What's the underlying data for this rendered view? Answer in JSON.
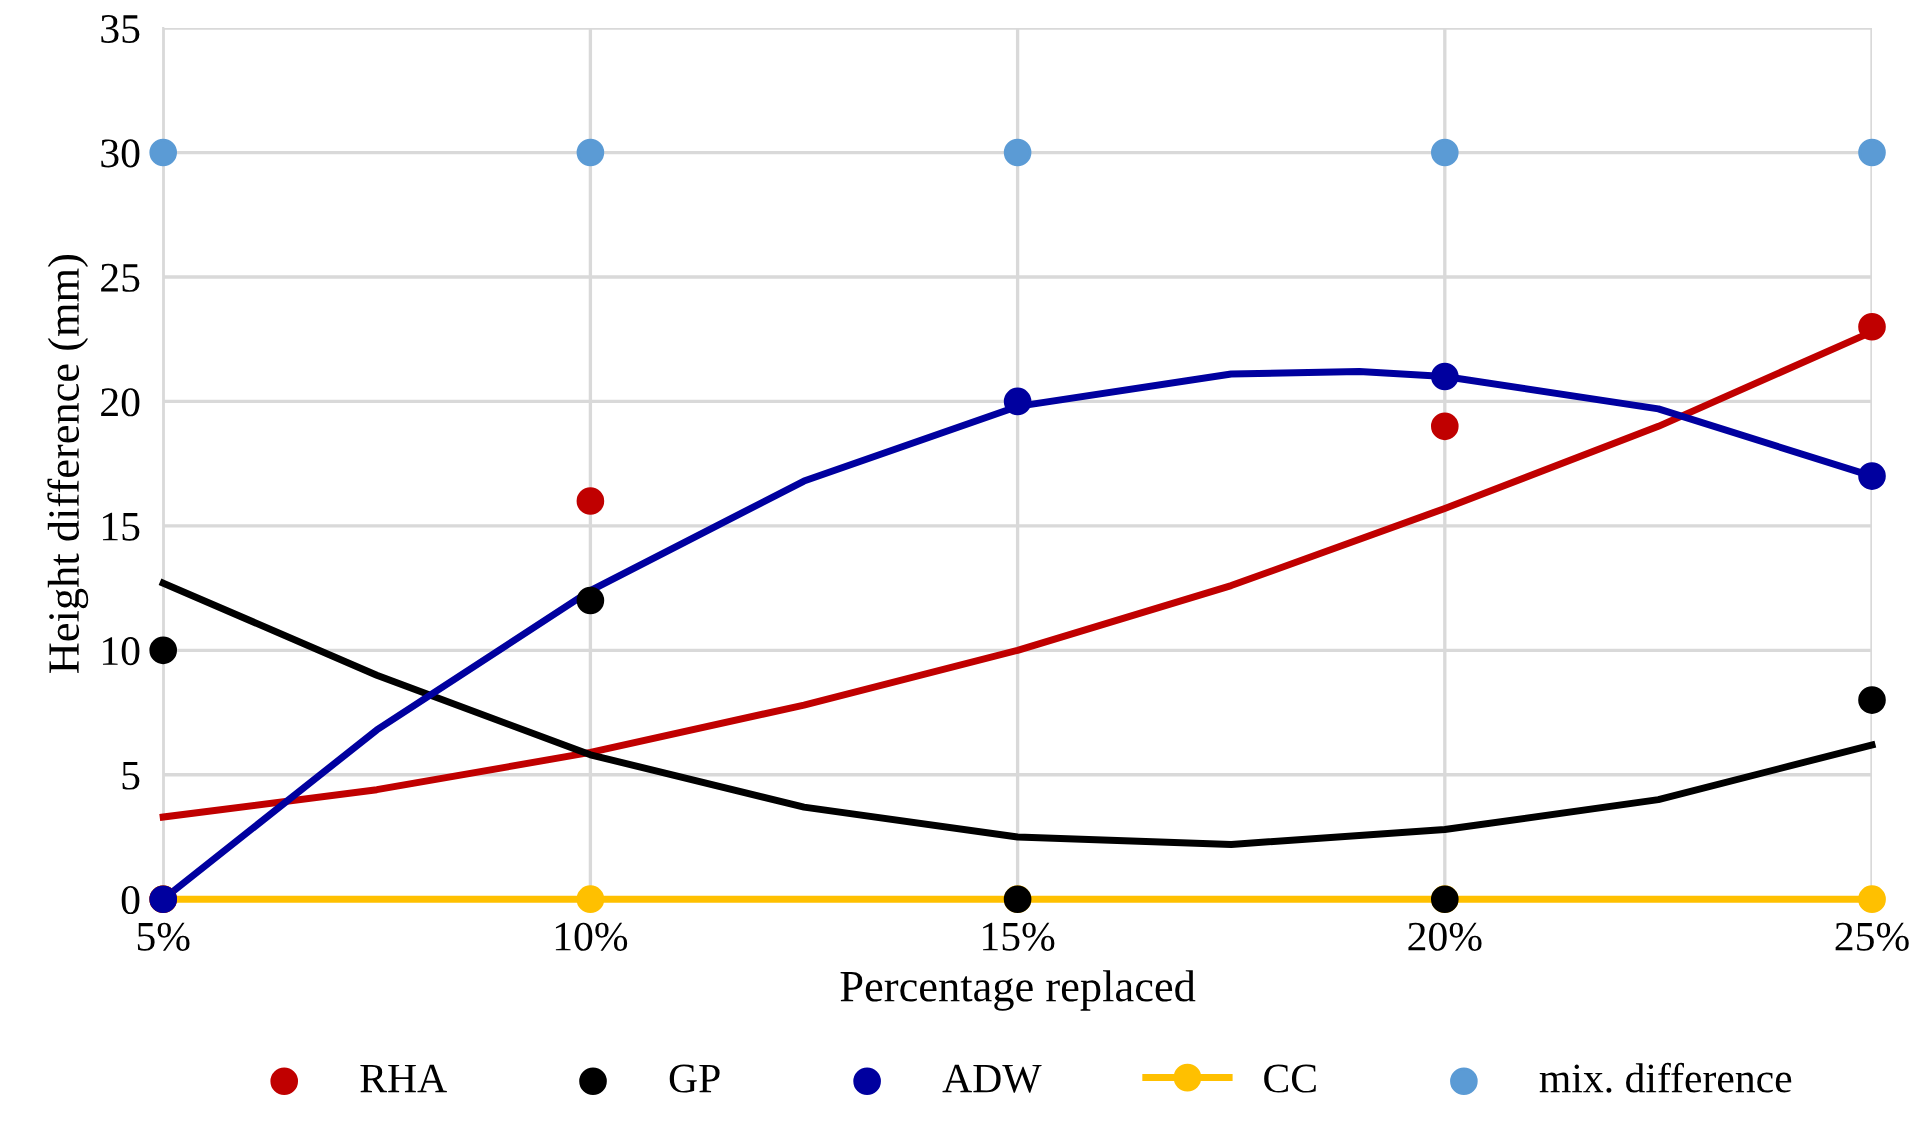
{
  "chart_data": {
    "type": "scatter",
    "xlabel": "Percentage replaced",
    "ylabel": "Height difference (mm)",
    "x": [
      5,
      10,
      15,
      20,
      25
    ],
    "xlim": [
      5,
      25
    ],
    "xticks": [
      {
        "value": 5,
        "label": "5%"
      },
      {
        "value": 10,
        "label": "10%"
      },
      {
        "value": 15,
        "label": "15%"
      },
      {
        "value": 20,
        "label": "20%"
      },
      {
        "value": 25,
        "label": "25%"
      }
    ],
    "ylim": [
      0,
      35
    ],
    "yticks": [
      0,
      5,
      10,
      15,
      20,
      25,
      30,
      35
    ],
    "grid": true,
    "legend": "bottom",
    "series": [
      {
        "name": "RHA",
        "marker": "circle",
        "color": "#c00000",
        "values": [
          0,
          16,
          null,
          19,
          23
        ]
      },
      {
        "name": "GP",
        "marker": "circle",
        "color": "#000000",
        "values": [
          10,
          12,
          0,
          0,
          8
        ]
      },
      {
        "name": "ADW",
        "marker": "circle",
        "color": "#00009f",
        "values": [
          0,
          null,
          20,
          21,
          17
        ]
      },
      {
        "name": "CC",
        "type": "line",
        "marker": "circle",
        "color": "#ffc000",
        "values": [
          0,
          0,
          0,
          0,
          0
        ]
      },
      {
        "name": "mix. difference",
        "marker": "circle",
        "color": "#5b9bd5",
        "values": [
          30,
          30,
          30,
          30,
          30
        ]
      },
      {
        "type": "line",
        "marker": "none",
        "color": "#c00000",
        "x": [
          5,
          7.5,
          10,
          12.5,
          15,
          17.5,
          20,
          22.5,
          25
        ],
        "values": [
          3.3,
          4.4,
          5.9,
          7.8,
          10,
          12.6,
          15.7,
          19,
          22.8
        ]
      },
      {
        "type": "line",
        "marker": "none",
        "color": "#000000",
        "x": [
          5,
          7.5,
          10,
          12.5,
          15,
          17.5,
          20,
          22.5,
          25
        ],
        "values": [
          12.7,
          9,
          5.8,
          3.7,
          2.5,
          2.2,
          2.8,
          4,
          6.2
        ]
      },
      {
        "type": "line",
        "marker": "none",
        "color": "#00009f",
        "x": [
          5,
          7.5,
          10,
          12.5,
          15,
          17.5,
          19,
          20,
          22.5,
          25
        ],
        "values": [
          0,
          6.8,
          12.4,
          16.8,
          19.8,
          21.1,
          21.2,
          21,
          19.7,
          17
        ]
      }
    ]
  }
}
